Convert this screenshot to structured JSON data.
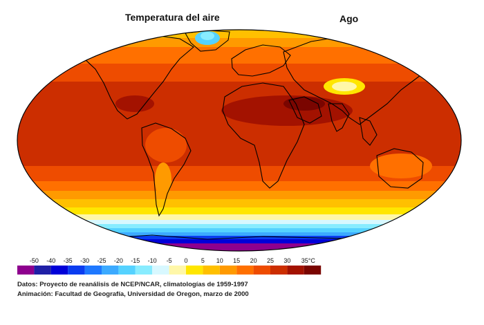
{
  "title": "Temperatura del aire",
  "month": "Ago",
  "legend": {
    "ticks": [
      "-50",
      "-40",
      "-35",
      "-30",
      "-25",
      "-20",
      "-15",
      "-10",
      "-5",
      "0",
      "5",
      "10",
      "15",
      "20",
      "25",
      "30",
      "35°C"
    ],
    "colors": [
      "#8e008e",
      "#1f1fa6",
      "#0000d8",
      "#0a3cf0",
      "#1e78ff",
      "#3caaff",
      "#55d2ff",
      "#88ecff",
      "#d8f8ff",
      "#fff7a8",
      "#ffe600",
      "#ffc000",
      "#ff9a00",
      "#ff7000",
      "#ee4c00",
      "#cc2e00",
      "#a31200",
      "#7a0500"
    ]
  },
  "credits": {
    "line1": "Datos: Proyecto de reanálisis de NCEP/NCAR, climatologías de 1959-1997",
    "line2": "Animación: Facultad de Geografía, Universidad de Oregon, marzo de 2000"
  }
}
